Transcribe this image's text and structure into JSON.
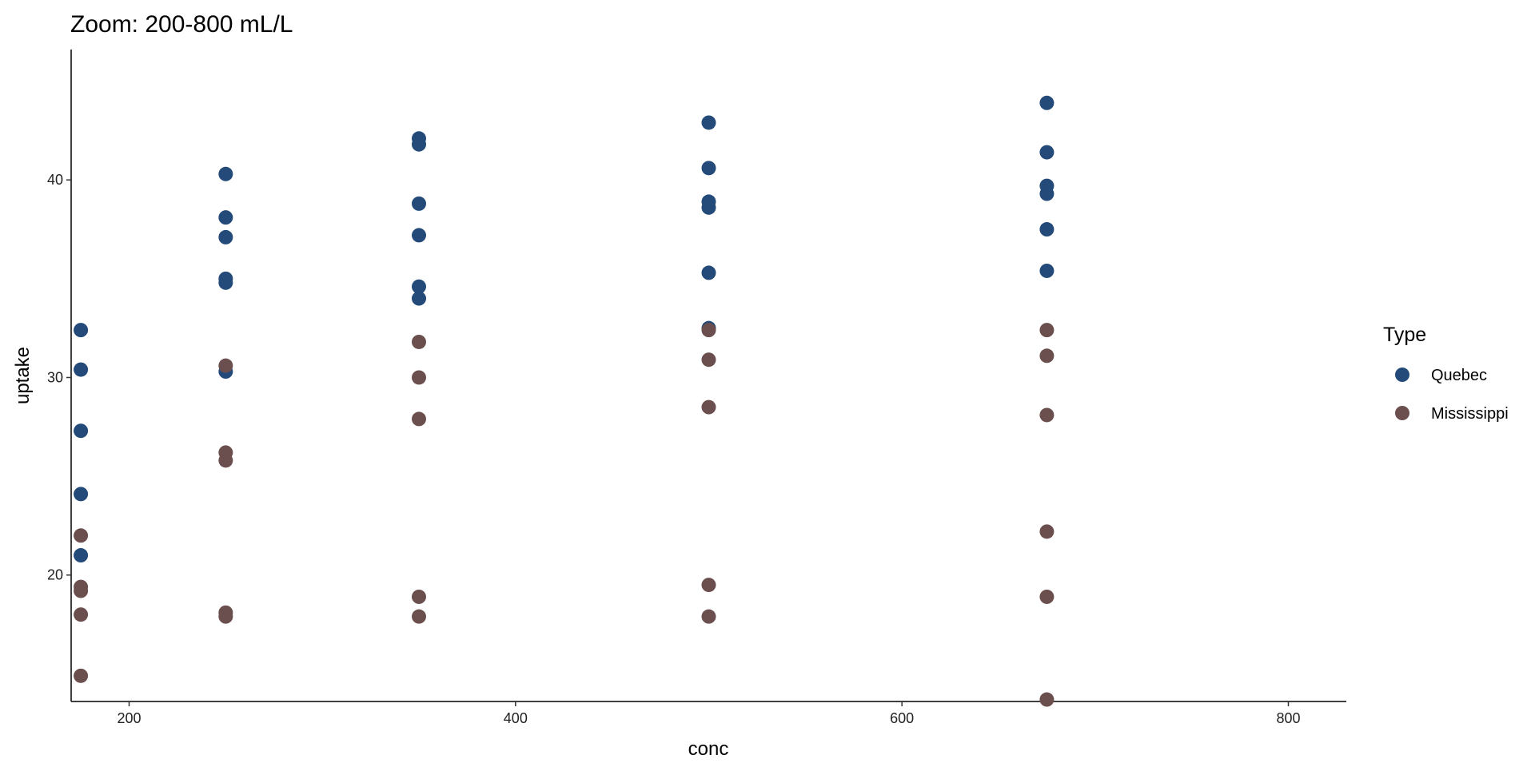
{
  "chart_data": {
    "type": "scatter",
    "title": "Zoom: 200-800 mL/L",
    "x_label": "conc",
    "y_label": "uptake",
    "legend_title": "Type",
    "xlim": [
      170,
      830
    ],
    "xticks": [
      200,
      400,
      600,
      800
    ],
    "ylim": [
      13.6,
      46.6
    ],
    "yticks": [
      20,
      30,
      40
    ],
    "series": [
      {
        "name": "Quebec",
        "color": "#234a78",
        "x": [
          175,
          175,
          175,
          175,
          175,
          250,
          250,
          250,
          250,
          250,
          250,
          350,
          350,
          350,
          350,
          350,
          350,
          500,
          500,
          500,
          500,
          500,
          500,
          675,
          675,
          675,
          675,
          675,
          675
        ],
        "values": [
          32.4,
          30.4,
          27.3,
          24.1,
          21.0,
          40.3,
          38.1,
          37.1,
          35.0,
          34.8,
          30.3,
          42.1,
          41.8,
          38.8,
          37.2,
          34.6,
          34.0,
          42.9,
          40.6,
          38.9,
          38.6,
          35.3,
          32.5,
          43.9,
          41.4,
          39.7,
          39.3,
          37.5,
          35.4
        ]
      },
      {
        "name": "Mississippi",
        "color": "#6b4e4e",
        "x": [
          175,
          175,
          175,
          175,
          175,
          250,
          250,
          250,
          250,
          250,
          350,
          350,
          350,
          350,
          350,
          500,
          500,
          500,
          500,
          500,
          675,
          675,
          675,
          675,
          675,
          675
        ],
        "values": [
          22.0,
          19.4,
          19.2,
          18.0,
          14.9,
          30.6,
          26.2,
          25.8,
          18.1,
          17.9,
          31.8,
          30.0,
          27.9,
          18.9,
          17.9,
          32.4,
          30.9,
          28.5,
          19.5,
          17.9,
          32.4,
          31.1,
          28.1,
          22.2,
          18.9,
          13.7
        ]
      }
    ]
  }
}
